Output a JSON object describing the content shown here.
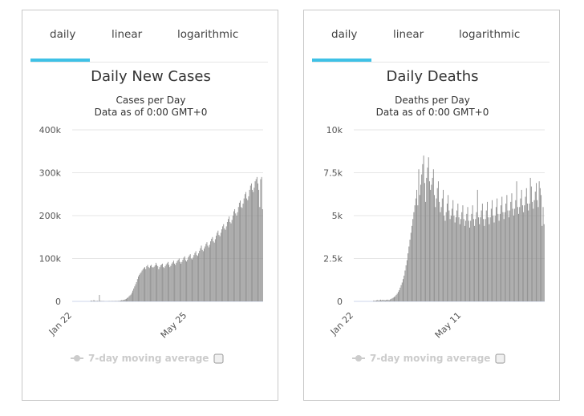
{
  "tabs": [
    "daily",
    "linear",
    "logarithmic"
  ],
  "active_tab": "daily",
  "colors": {
    "bar": "#8c8c8c",
    "tab_underline": "#3ec1e6",
    "grid": "#e6e6e6",
    "legend_disabled": "#cccccc"
  },
  "legend_label": "7-day moving average",
  "chart_data": [
    {
      "type": "bar",
      "title": "Daily New Cases",
      "subtitle": "Cases per Day",
      "subtitle2": "Data as of 0:00 GMT+0",
      "ylim": [
        0,
        400000
      ],
      "yticks": [
        0,
        100000,
        200000,
        300000,
        400000
      ],
      "ytick_labels": [
        "0",
        "100k",
        "200k",
        "300k",
        "400k"
      ],
      "xtick_labels": [
        "Jan 22",
        "May 25"
      ],
      "xtick_index": [
        0,
        124
      ],
      "values": [
        0,
        0,
        0,
        0,
        0,
        0,
        0,
        0,
        0,
        0,
        0,
        0,
        0,
        0,
        0,
        0,
        0,
        0,
        0,
        0,
        2000,
        1000,
        800,
        3000,
        1500,
        500,
        900,
        1200,
        600,
        15000,
        1000,
        800,
        500,
        700,
        600,
        300,
        200,
        400,
        300,
        500,
        600,
        400,
        700,
        800,
        600,
        500,
        800,
        900,
        700,
        800,
        1500,
        1000,
        2000,
        3000,
        2500,
        3500,
        4000,
        5000,
        6000,
        8000,
        9000,
        12000,
        14000,
        16000,
        20000,
        25000,
        30000,
        35000,
        40000,
        45000,
        52000,
        58000,
        62000,
        65000,
        68000,
        72000,
        75000,
        78000,
        80000,
        75000,
        82000,
        85000,
        80000,
        78000,
        83000,
        85000,
        80000,
        79000,
        81000,
        84000,
        90000,
        85000,
        82000,
        75000,
        80000,
        84000,
        86000,
        88000,
        80000,
        78000,
        82000,
        86000,
        89000,
        92000,
        85000,
        80000,
        83000,
        88000,
        91000,
        95000,
        88000,
        85000,
        90000,
        94000,
        97000,
        100000,
        92000,
        88000,
        92000,
        97000,
        102000,
        105000,
        96000,
        93000,
        97000,
        103000,
        107000,
        110000,
        100000,
        98000,
        102000,
        108000,
        113000,
        117000,
        108000,
        106000,
        112000,
        118000,
        124000,
        130000,
        120000,
        117000,
        123000,
        128000,
        134000,
        138000,
        130000,
        126000,
        132000,
        140000,
        146000,
        150000,
        140000,
        137000,
        145000,
        153000,
        160000,
        165000,
        155000,
        152000,
        160000,
        168000,
        175000,
        180000,
        170000,
        167000,
        175000,
        185000,
        192000,
        198000,
        185000,
        182000,
        190000,
        200000,
        210000,
        215000,
        205000,
        200000,
        208000,
        220000,
        230000,
        235000,
        220000,
        218000,
        228000,
        240000,
        250000,
        255000,
        240000,
        236000,
        245000,
        260000,
        270000,
        275000,
        260000,
        255000,
        265000,
        280000,
        285000,
        290000,
        275000,
        260000,
        220000,
        285000,
        290000,
        215000
      ]
    },
    {
      "type": "bar",
      "title": "Daily Deaths",
      "subtitle": "Deaths per Day",
      "subtitle2": "Data as of 0:00 GMT+0",
      "ylim": [
        0,
        10000
      ],
      "yticks": [
        0,
        2500,
        5000,
        7500,
        10000
      ],
      "ytick_labels": [
        "0",
        "2.5k",
        "5k",
        "7.5k",
        "10k"
      ],
      "xtick_labels": [
        "Jan 22",
        "May 11"
      ],
      "xtick_index": [
        0,
        110
      ],
      "values": [
        0,
        0,
        0,
        0,
        0,
        0,
        0,
        0,
        0,
        0,
        0,
        0,
        0,
        0,
        0,
        0,
        0,
        0,
        0,
        0,
        50,
        30,
        40,
        60,
        80,
        50,
        70,
        100,
        60,
        90,
        80,
        70,
        60,
        90,
        100,
        80,
        70,
        120,
        150,
        180,
        220,
        260,
        300,
        380,
        450,
        550,
        650,
        800,
        950,
        1100,
        1300,
        1500,
        1800,
        2100,
        2400,
        2800,
        3200,
        3600,
        4000,
        4400,
        4800,
        5200,
        5600,
        6000,
        6500,
        5600,
        7700,
        6200,
        6800,
        7400,
        8000,
        8500,
        6900,
        5800,
        7200,
        7800,
        8400,
        7000,
        6500,
        6800,
        7200,
        7700,
        6200,
        5500,
        6000,
        6600,
        7000,
        5800,
        5200,
        5500,
        6000,
        6500,
        5000,
        4700,
        5200,
        5700,
        6200,
        5300,
        4800,
        5000,
        5400,
        5900,
        5000,
        4600,
        4900,
        5300,
        5700,
        4900,
        4500,
        4800,
        5200,
        5600,
        4800,
        4400,
        4700,
        5100,
        5500,
        4700,
        4300,
        4700,
        5100,
        5600,
        4800,
        4400,
        4800,
        5200,
        6500,
        4900,
        4500,
        4900,
        5300,
        5700,
        4800,
        4400,
        4800,
        5300,
        5800,
        4900,
        4500,
        4900,
        5400,
        5900,
        5000,
        4600,
        5000,
        5500,
        6000,
        5100,
        4700,
        5100,
        5600,
        6100,
        5200,
        4800,
        5200,
        5700,
        6200,
        5300,
        4900,
        5300,
        5800,
        6300,
        5400,
        5000,
        5400,
        5900,
        7000,
        5500,
        5100,
        5500,
        6000,
        6500,
        5600,
        5200,
        5600,
        6100,
        6600,
        5700,
        5300,
        5700,
        7200,
        6700,
        5800,
        5400,
        5900,
        6400,
        6900,
        5900,
        5500,
        7000,
        6600,
        6200,
        4400,
        5500,
        4500
      ]
    }
  ]
}
